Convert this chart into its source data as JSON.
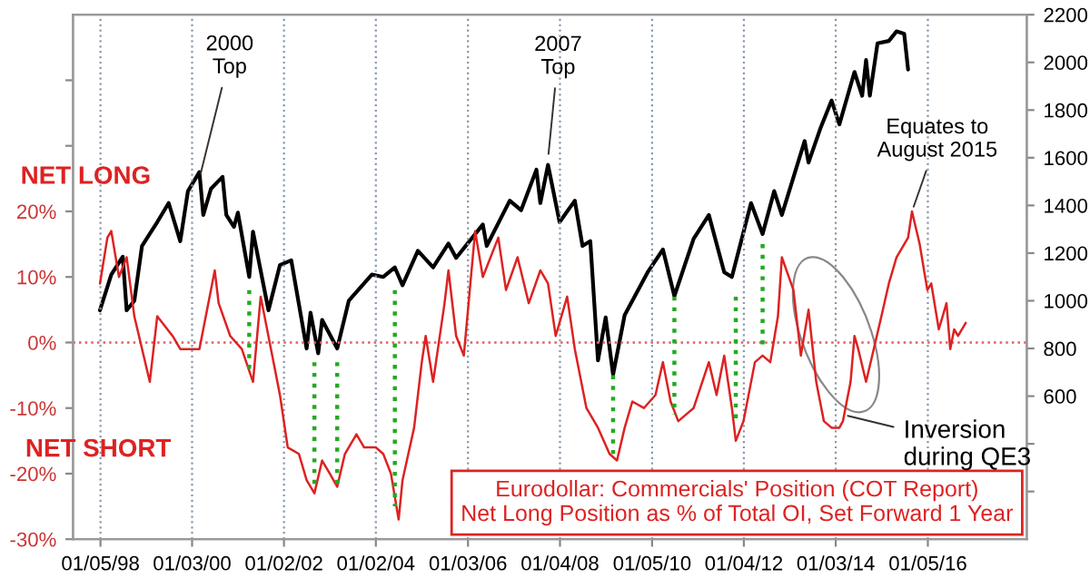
{
  "chart_data": {
    "type": "line",
    "xlim": [
      "1997-06-01",
      "2018-03-01"
    ],
    "xticks": [
      {
        "value": "1998-01-05",
        "label": "01/05/98"
      },
      {
        "value": "2000-01-03",
        "label": "01/03/00"
      },
      {
        "value": "2002-01-02",
        "label": "01/02/02"
      },
      {
        "value": "2004-01-02",
        "label": "01/02/04"
      },
      {
        "value": "2006-01-03",
        "label": "01/03/06"
      },
      {
        "value": "2008-01-04",
        "label": "01/04/08"
      },
      {
        "value": "2010-01-05",
        "label": "01/05/10"
      },
      {
        "value": "2012-01-04",
        "label": "01/04/12"
      },
      {
        "value": "2014-01-03",
        "label": "01/03/14"
      },
      {
        "value": "2016-01-05",
        "label": "01/05/16"
      }
    ],
    "ylim": [
      -30,
      50
    ],
    "yticks": [
      {
        "value": -30,
        "label": "-30%"
      },
      {
        "value": -20,
        "label": "-20%"
      },
      {
        "value": -10,
        "label": "-10%"
      },
      {
        "value": 0,
        "label": "0%"
      },
      {
        "value": 10,
        "label": "10%"
      },
      {
        "value": 20,
        "label": "20%"
      },
      {
        "value": 30,
        "label": null
      },
      {
        "value": 40,
        "label": null
      }
    ],
    "y2lim": [
      0,
      2200
    ],
    "y2ticks": [
      {
        "value": 200,
        "label": null
      },
      {
        "value": 400,
        "label": null
      },
      600,
      800,
      1000,
      1200,
      1400,
      1600,
      1800,
      2000,
      2200
    ],
    "grid": "x",
    "legend": "bottom right",
    "ref_lines": [
      {
        "axis": "y",
        "value": 0,
        "color": "#e06060",
        "line_style": "dotted"
      }
    ],
    "annotations": [
      {
        "text": "2000\nTop",
        "x": "2000-03",
        "y": 25
      },
      {
        "text": "2007\nTop",
        "x": "2007-10",
        "y": 28
      },
      {
        "text": "Equates to\nAugust 2015",
        "x": "2015-09",
        "y": 20
      },
      {
        "text": "Inversion\nduring QE3",
        "x": "2014-03",
        "y": -11
      },
      "NET LONG",
      "NET SHORT"
    ],
    "series": [
      {
        "axis": "y2",
        "color": "#000000",
        "x": [
          "1998-01",
          "1998-04",
          "1998-07",
          "1998-08",
          "1998-10",
          "1998-12",
          "1999-04",
          "1999-07",
          "1999-10",
          "1999-12",
          "2000-03",
          "2000-04",
          "2000-06",
          "2000-09",
          "2000-10",
          "2000-12",
          "2001-01",
          "2001-04",
          "2001-05",
          "2001-09",
          "2001-12",
          "2002-03",
          "2002-07",
          "2002-08",
          "2002-10",
          "2002-11",
          "2003-03",
          "2003-06",
          "2003-12",
          "2004-03",
          "2004-06",
          "2004-08",
          "2004-12",
          "2005-04",
          "2005-08",
          "2005-10",
          "2006-05",
          "2006-06",
          "2006-12",
          "2007-03",
          "2007-07",
          "2007-08",
          "2007-10",
          "2008-01",
          "2008-05",
          "2008-07",
          "2008-09",
          "2008-11",
          "2009-01",
          "2009-03",
          "2009-06",
          "2009-12",
          "2010-04",
          "2010-07",
          "2010-12",
          "2011-04",
          "2011-08",
          "2011-10",
          "2012-03",
          "2012-06",
          "2012-09",
          "2012-11",
          "2013-05",
          "2013-06",
          "2013-09",
          "2013-12",
          "2014-02",
          "2014-06",
          "2014-08",
          "2014-09",
          "2014-10",
          "2014-12",
          "2015-03",
          "2015-05",
          "2015-07",
          "2015-08"
        ],
        "values": [
          960,
          1110,
          1185,
          960,
          1000,
          1230,
          1330,
          1410,
          1250,
          1460,
          1540,
          1360,
          1470,
          1520,
          1360,
          1310,
          1370,
          1100,
          1290,
          960,
          1150,
          1170,
          800,
          950,
          780,
          920,
          800,
          1000,
          1110,
          1100,
          1140,
          1065,
          1210,
          1140,
          1240,
          1180,
          1320,
          1230,
          1420,
          1380,
          1550,
          1410,
          1570,
          1330,
          1420,
          1230,
          1250,
          750,
          930,
          690,
          940,
          1120,
          1215,
          1020,
          1260,
          1360,
          1120,
          1100,
          1410,
          1280,
          1460,
          1360,
          1670,
          1580,
          1720,
          1840,
          1740,
          1960,
          1860,
          2010,
          1860,
          2080,
          2090,
          2130,
          2120,
          1970
        ]
      },
      {
        "name": "Eurodollar: Commercials' Position (COT Report)\nNet Long Position as % of Total OI, Set Forward 1 Year",
        "color": "#dd2222",
        "x": [
          "1998-01",
          "1998-03",
          "1998-04",
          "1998-06",
          "1998-08",
          "1998-10",
          "1999-02",
          "1999-04",
          "1999-08",
          "1999-10",
          "2000-03",
          "2000-07",
          "2000-08",
          "2000-11",
          "2001-02",
          "2001-05",
          "2001-07",
          "2001-10",
          "2001-12",
          "2002-02",
          "2002-05",
          "2002-07",
          "2002-09",
          "2002-11",
          "2003-01",
          "2003-03",
          "2003-05",
          "2003-08",
          "2003-10",
          "2004-01",
          "2004-03",
          "2004-05",
          "2004-07",
          "2004-08",
          "2004-11",
          "2005-01",
          "2005-02",
          "2005-04",
          "2005-07",
          "2005-08",
          "2005-10",
          "2005-12",
          "2006-03",
          "2006-05",
          "2006-09",
          "2006-11",
          "2007-02",
          "2007-05",
          "2007-08",
          "2007-10",
          "2007-12",
          "2008-03",
          "2008-05",
          "2008-08",
          "2008-11",
          "2009-02",
          "2009-04",
          "2009-06",
          "2009-08",
          "2009-11",
          "2010-02",
          "2010-04",
          "2010-06",
          "2010-08",
          "2010-12",
          "2011-04",
          "2011-06",
          "2011-08",
          "2011-10",
          "2011-11",
          "2012-01",
          "2012-04",
          "2012-06",
          "2012-08",
          "2012-10",
          "2012-11",
          "2013-02",
          "2013-04",
          "2013-06",
          "2013-08",
          "2013-10",
          "2013-12",
          "2014-02",
          "2014-03",
          "2014-05",
          "2014-06",
          "2014-07",
          "2014-09",
          "2014-11",
          "2015-01",
          "2015-03",
          "2015-05",
          "2015-08",
          "2015-09",
          "2015-11",
          "2016-01",
          "2016-02",
          "2016-04",
          "2016-06",
          "2016-07",
          "2016-08",
          "2016-09",
          "2016-11"
        ],
        "values": [
          9,
          16,
          17,
          10,
          13,
          4,
          -6,
          4,
          1,
          -1,
          -1,
          11,
          6,
          1,
          -1,
          -6,
          7,
          -2,
          -8,
          -16,
          -17,
          -21,
          -23,
          -18,
          -20,
          -22,
          -17,
          -14,
          -16,
          -16,
          -17,
          -20,
          -27,
          -21,
          -13,
          -3,
          1,
          -6,
          6,
          11,
          1,
          -2,
          17,
          10,
          16,
          8,
          13,
          6,
          11,
          9,
          1,
          7,
          -1,
          -10,
          -13,
          -17,
          -18,
          -13,
          -9,
          -10,
          -8,
          -3,
          -9,
          -12,
          -10,
          -3,
          -8,
          -2,
          -10,
          -15,
          -12,
          -3,
          -2,
          -3,
          4,
          13,
          8,
          -2,
          5,
          -6,
          -12,
          -13,
          -13,
          -12,
          -6,
          1,
          -1,
          -6,
          -1,
          4,
          9,
          13,
          16,
          20,
          15,
          8,
          9,
          2,
          6,
          -1,
          2,
          1,
          3
        ]
      },
      {
        "color": "#22aa22",
        "line_style": "dotted",
        "x": [
          "2001-04",
          "2001-04"
        ],
        "values": [
          8,
          -5
        ]
      },
      {
        "color": "#22aa22",
        "line_style": "dotted",
        "x": [
          "2002-09",
          "2002-09"
        ],
        "values": [
          -3,
          -22
        ]
      },
      {
        "color": "#22aa22",
        "line_style": "dotted",
        "x": [
          "2003-03",
          "2003-03"
        ],
        "values": [
          -3,
          -22
        ]
      },
      {
        "color": "#22aa22",
        "line_style": "dotted",
        "x": [
          "2004-06",
          "2004-06"
        ],
        "values": [
          8,
          -25
        ]
      },
      {
        "color": "#22aa22",
        "line_style": "dotted",
        "x": [
          "2009-03",
          "2009-03"
        ],
        "values": [
          -5,
          -17
        ]
      },
      {
        "color": "#22aa22",
        "line_style": "dotted",
        "x": [
          "2010-07",
          "2010-07"
        ],
        "values": [
          7,
          -11
        ]
      },
      {
        "color": "#22aa22",
        "line_style": "dotted",
        "x": [
          "2011-11",
          "2011-11"
        ],
        "values": [
          7,
          -12
        ]
      },
      {
        "color": "#22aa22",
        "line_style": "dotted",
        "x": [
          "2012-06",
          "2012-06"
        ],
        "values": [
          15,
          -1
        ]
      }
    ]
  }
}
